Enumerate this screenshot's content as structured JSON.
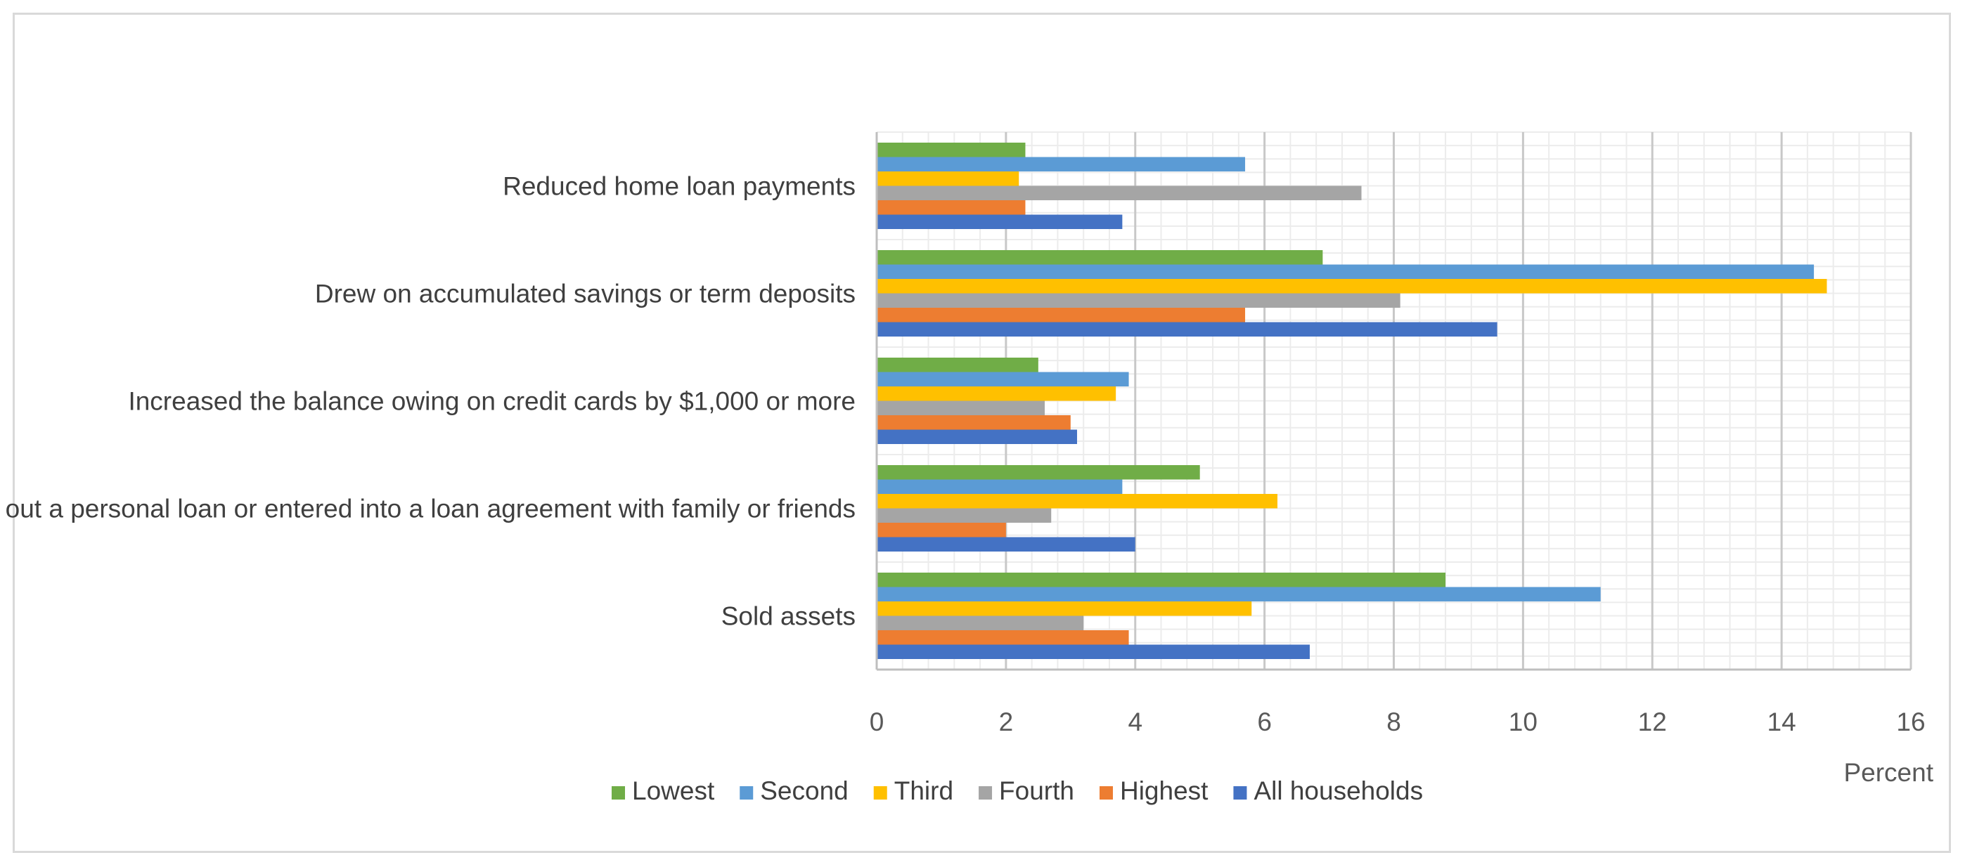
{
  "chart_data": {
    "type": "bar",
    "orientation": "horizontal",
    "title": "",
    "xlabel": "Percent",
    "ylabel": "",
    "xlim": [
      0,
      16
    ],
    "x_ticks": [
      0,
      2,
      4,
      6,
      8,
      10,
      12,
      14,
      16
    ],
    "grid": true,
    "legend_position": "bottom",
    "categories": [
      "Reduced home loan payments",
      "Drew on accumulated savings or term deposits",
      "Increased the balance owing on credit cards by $1,000 or more",
      "Took out a personal loan or entered into a loan agreement with family or friends",
      "Sold assets"
    ],
    "series": [
      {
        "name": "Lowest",
        "color": "#70ad47",
        "values": [
          2.3,
          6.9,
          2.5,
          5.0,
          8.8
        ]
      },
      {
        "name": "Second",
        "color": "#5b9bd5",
        "values": [
          5.7,
          14.5,
          3.9,
          3.8,
          11.2
        ]
      },
      {
        "name": "Third",
        "color": "#ffc000",
        "values": [
          2.2,
          14.7,
          3.7,
          6.2,
          5.8
        ]
      },
      {
        "name": "Fourth",
        "color": "#a5a5a5",
        "values": [
          7.5,
          8.1,
          2.6,
          2.7,
          3.2
        ]
      },
      {
        "name": "Highest",
        "color": "#ed7d31",
        "values": [
          2.3,
          5.7,
          3.0,
          2.0,
          3.9
        ]
      },
      {
        "name": "All households",
        "color": "#4472c4",
        "values": [
          3.8,
          9.6,
          3.1,
          4.0,
          6.7
        ]
      }
    ]
  }
}
